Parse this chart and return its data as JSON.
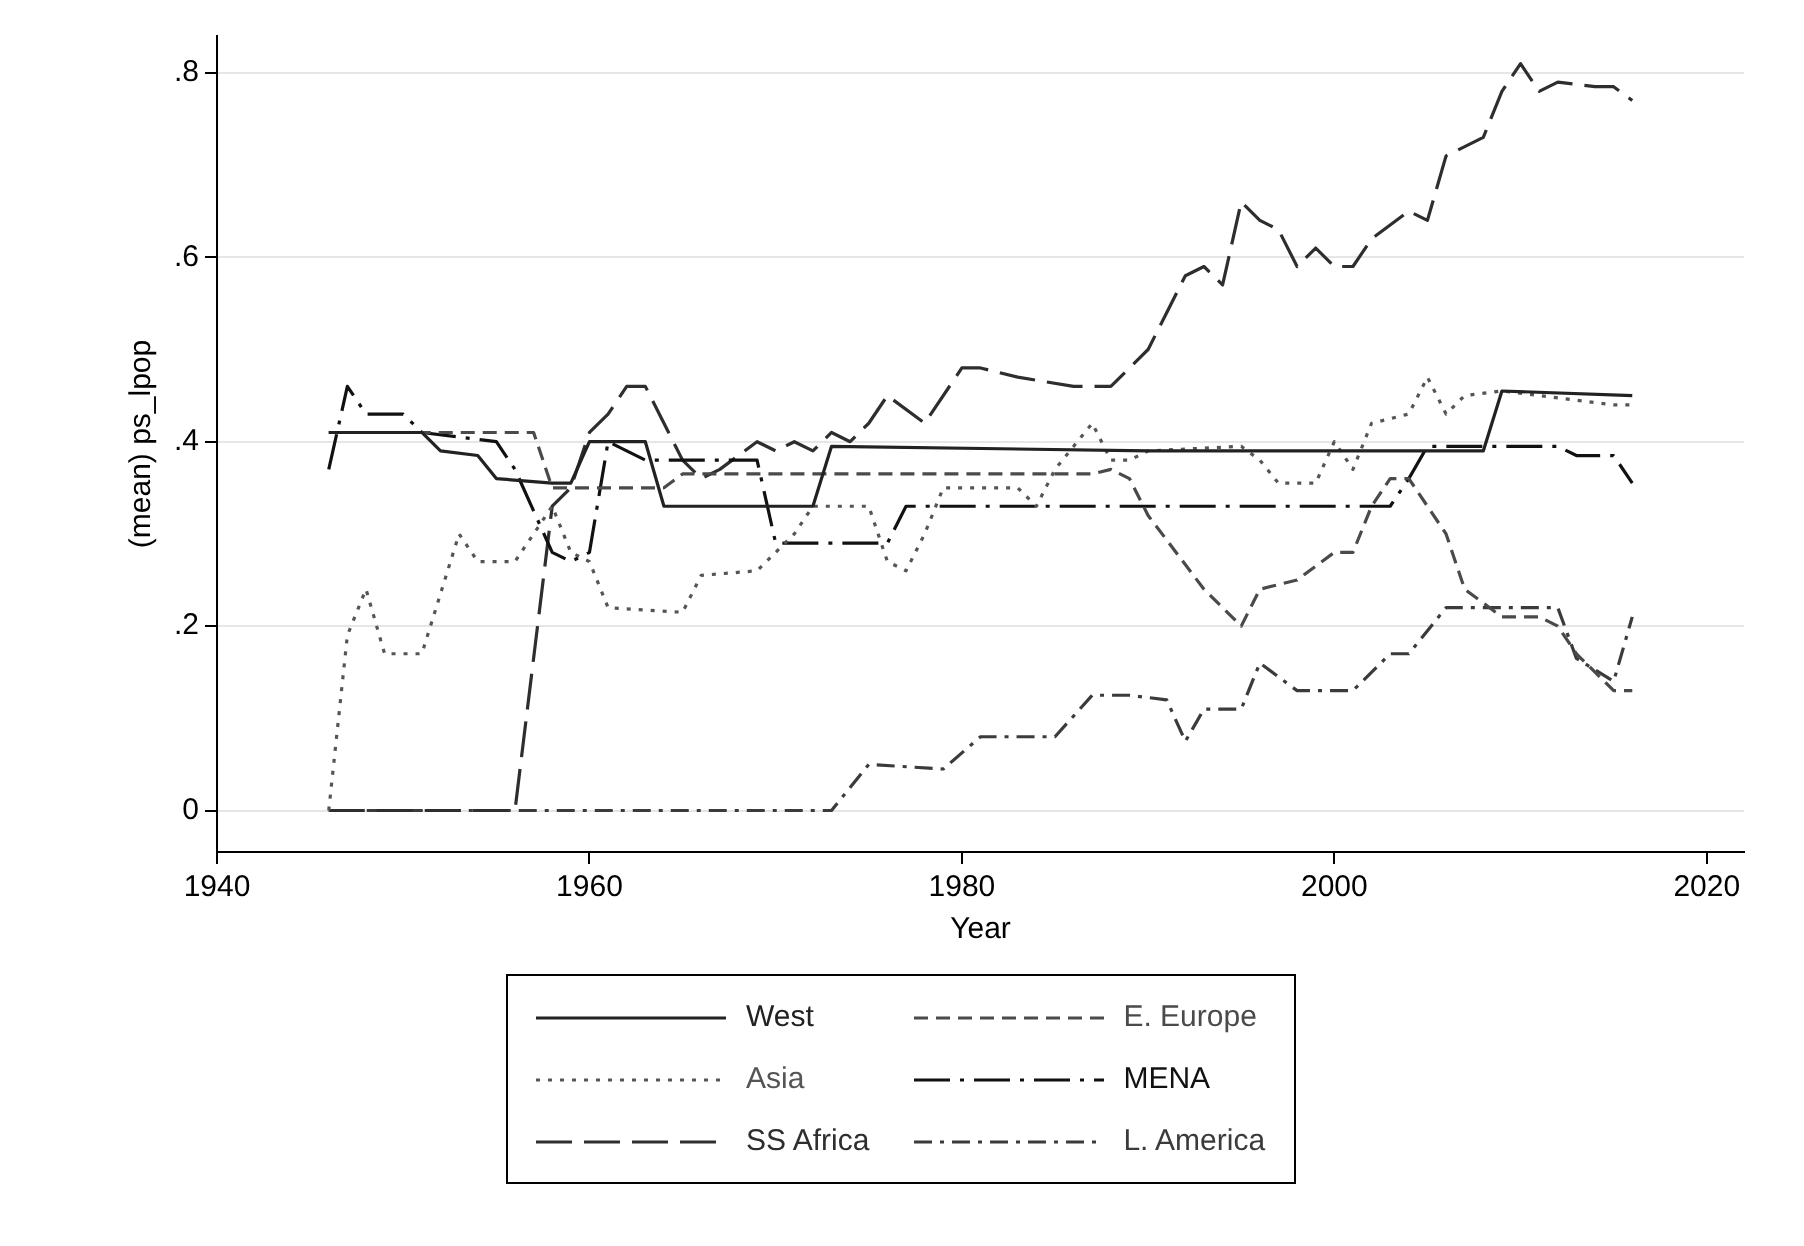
{
  "chart_data": {
    "type": "line",
    "xlabel": "Year",
    "ylabel": "(mean) ps_lpop",
    "xlim": [
      1940,
      2022
    ],
    "xticks": [
      1940,
      1960,
      1980,
      2000,
      2020
    ],
    "ylim": [
      -0.045,
      0.84
    ],
    "yticks": [
      {
        "value": 0,
        "label": "0"
      },
      {
        "value": 0.2,
        "label": ".2"
      },
      {
        "value": 0.4,
        "label": ".4"
      },
      {
        "value": 0.6,
        "label": ".6"
      },
      {
        "value": 0.8,
        "label": ".8"
      }
    ],
    "grid": "y",
    "legend": "bottom",
    "marker": "none",
    "series": [
      {
        "name": "West",
        "color": "#222222",
        "line_style": "solid",
        "x": [
          1946,
          1951,
          1952,
          1954,
          1955,
          1958,
          1959,
          1960,
          1963,
          1964,
          1972,
          1973,
          1990,
          2008,
          2009,
          2016
        ],
        "values": [
          0.41,
          0.41,
          0.39,
          0.385,
          0.36,
          0.355,
          0.355,
          0.4,
          0.4,
          0.33,
          0.33,
          0.395,
          0.39,
          0.39,
          0.455,
          0.45
        ]
      },
      {
        "name": "E. Europe",
        "color": "#4a4a4a",
        "line_style": "dashed",
        "x": [
          1946,
          1957,
          1958,
          1964,
          1965,
          1987,
          1988,
          1989,
          1990,
          1993,
          1995,
          1996,
          1998,
          2000,
          2001,
          2002,
          2003,
          2004,
          2005,
          2006,
          2007,
          2009,
          2011,
          2012,
          2013,
          2014,
          2015,
          2016
        ],
        "values": [
          0.41,
          0.41,
          0.35,
          0.35,
          0.365,
          0.365,
          0.37,
          0.36,
          0.32,
          0.24,
          0.2,
          0.24,
          0.25,
          0.28,
          0.28,
          0.33,
          0.36,
          0.36,
          0.33,
          0.3,
          0.24,
          0.21,
          0.21,
          0.2,
          0.17,
          0.15,
          0.13,
          0.13
        ]
      },
      {
        "name": "Asia",
        "color": "#555555",
        "line_style": "dotted",
        "x": [
          1946,
          1947,
          1948,
          1949,
          1951,
          1953,
          1954,
          1956,
          1958,
          1959,
          1960,
          1961,
          1965,
          1966,
          1969,
          1971,
          1972,
          1975,
          1976,
          1977,
          1978,
          1979,
          1983,
          1984,
          1985,
          1987,
          1988,
          1989,
          1990,
          1995,
          1996,
          1997,
          1999,
          2000,
          2001,
          2002,
          2004,
          2005,
          2006,
          2007,
          2009,
          2015,
          2016
        ],
        "values": [
          0,
          0.19,
          0.24,
          0.17,
          0.17,
          0.3,
          0.27,
          0.27,
          0.33,
          0.28,
          0.27,
          0.22,
          0.215,
          0.255,
          0.26,
          0.3,
          0.33,
          0.33,
          0.27,
          0.26,
          0.3,
          0.35,
          0.35,
          0.33,
          0.37,
          0.42,
          0.38,
          0.38,
          0.39,
          0.395,
          0.38,
          0.355,
          0.355,
          0.4,
          0.37,
          0.42,
          0.43,
          0.47,
          0.43,
          0.45,
          0.455,
          0.44,
          0.44
        ]
      },
      {
        "name": "MENA",
        "color": "#111111",
        "line_style": "longdashdot",
        "x": [
          1946,
          1947,
          1948,
          1950,
          1951,
          1955,
          1956,
          1958,
          1959,
          1960,
          1961,
          1963,
          1969,
          1970,
          1976,
          1977,
          2003,
          2004,
          2005,
          2012,
          2013,
          2015,
          2016
        ],
        "values": [
          0.37,
          0.46,
          0.43,
          0.43,
          0.41,
          0.4,
          0.37,
          0.28,
          0.27,
          0.28,
          0.4,
          0.38,
          0.38,
          0.29,
          0.29,
          0.33,
          0.33,
          0.36,
          0.395,
          0.395,
          0.385,
          0.385,
          0.355
        ]
      },
      {
        "name": "SS Africa",
        "color": "#2e2e2e",
        "line_style": "longdash",
        "x": [
          1946,
          1956,
          1958,
          1959,
          1960,
          1961,
          1962,
          1963,
          1965,
          1966,
          1967,
          1969,
          1970,
          1971,
          1972,
          1973,
          1974,
          1975,
          1976,
          1978,
          1980,
          1981,
          1983,
          1986,
          1988,
          1990,
          1992,
          1993,
          1994,
          1995,
          1996,
          1997,
          1998,
          1999,
          2000,
          2001,
          2002,
          2004,
          2005,
          2006,
          2008,
          2009,
          2010,
          2011,
          2012,
          2014,
          2015,
          2016
        ],
        "values": [
          0,
          0,
          0.33,
          0.35,
          0.41,
          0.43,
          0.46,
          0.46,
          0.38,
          0.36,
          0.37,
          0.4,
          0.39,
          0.4,
          0.39,
          0.41,
          0.4,
          0.42,
          0.45,
          0.42,
          0.48,
          0.48,
          0.47,
          0.46,
          0.46,
          0.5,
          0.58,
          0.59,
          0.57,
          0.66,
          0.64,
          0.63,
          0.59,
          0.61,
          0.59,
          0.59,
          0.62,
          0.65,
          0.64,
          0.71,
          0.73,
          0.78,
          0.81,
          0.78,
          0.79,
          0.785,
          0.785,
          0.77
        ]
      },
      {
        "name": "L. America",
        "color": "#3b3b3b",
        "line_style": "dashdot",
        "x": [
          1946,
          1973,
          1975,
          1979,
          1981,
          1985,
          1987,
          1989,
          1991,
          1992,
          1993,
          1995,
          1996,
          1998,
          2001,
          2003,
          2004,
          2006,
          2012,
          2013,
          2015,
          2016
        ],
        "values": [
          0,
          0,
          0.05,
          0.045,
          0.08,
          0.08,
          0.125,
          0.125,
          0.12,
          0.075,
          0.11,
          0.11,
          0.16,
          0.13,
          0.13,
          0.17,
          0.17,
          0.22,
          0.22,
          0.165,
          0.14,
          0.21
        ]
      }
    ]
  }
}
